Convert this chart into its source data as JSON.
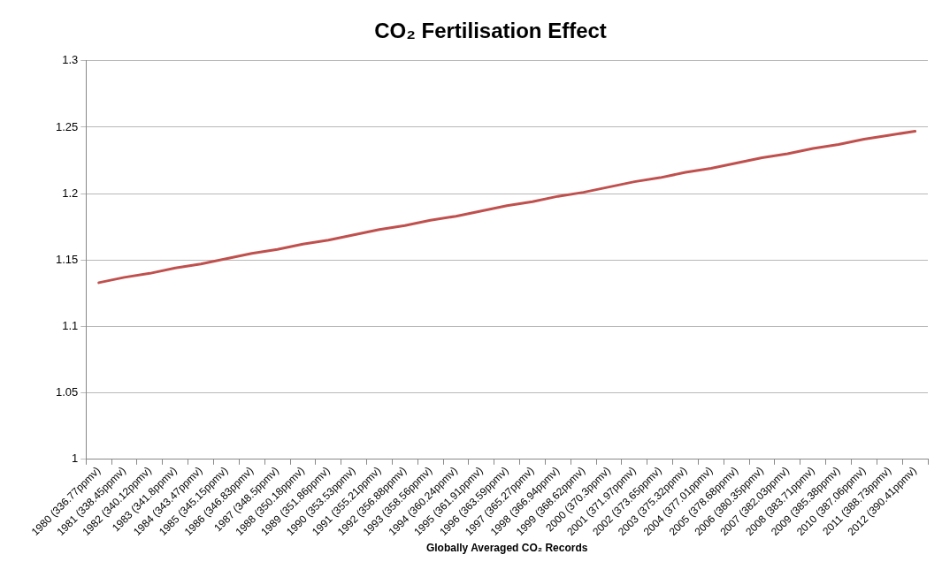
{
  "chart_data": {
    "type": "line",
    "title": "CO₂ Fertilisation Effect",
    "xlabel": "Globally Averaged CO₂ Records",
    "categories": [
      "1980 (336.77ppmv)",
      "1981 (338.45ppmv)",
      "1982 (340.12ppmv)",
      "1983 (341.8ppmv)",
      "1984 (343.47ppmv)",
      "1985 (345.15ppmv)",
      "1986 (346.83ppmv)",
      "1987 (348.5ppmv)",
      "1988 (350.18ppmv)",
      "1989 (351.86ppmv)",
      "1990 (353.53ppmv)",
      "1991 (355.21ppmv)",
      "1992 (356.88ppmv)",
      "1993 (358.56ppmv)",
      "1994 (360.24ppmv)",
      "1995 (361.91ppmv)",
      "1996 (363.59ppmv)",
      "1997 (365.27ppmv)",
      "1998 (366.94ppmv)",
      "1999 (368.62ppmv)",
      "2000 (370.3ppmv)",
      "2001 (371.97ppmv)",
      "2002 (373.65ppmv)",
      "2003 (375.32ppmv)",
      "2004 (377.01ppmv)",
      "2005 (378.68ppmv)",
      "2006 (380.35ppmv)",
      "2007 (382.03ppmv)",
      "2008 (383.71ppmv)",
      "2009 (385.38ppmv)",
      "2010 (387.06ppmv)",
      "2011 (388.73ppmv)",
      "2012 (390.41ppmv)"
    ],
    "values": [
      1.133,
      1.137,
      1.14,
      1.144,
      1.147,
      1.151,
      1.155,
      1.158,
      1.162,
      1.165,
      1.169,
      1.173,
      1.176,
      1.18,
      1.183,
      1.187,
      1.191,
      1.194,
      1.198,
      1.201,
      1.205,
      1.209,
      1.212,
      1.216,
      1.219,
      1.223,
      1.227,
      1.23,
      1.234,
      1.237,
      1.241,
      1.244,
      1.247
    ],
    "color": "#c0504d",
    "ylim": [
      1,
      1.3
    ],
    "yticks": [
      1,
      1.05,
      1.1,
      1.15,
      1.2,
      1.25,
      1.3
    ],
    "grid": "y",
    "legend": false,
    "marker": "none",
    "line_style": "solid"
  }
}
